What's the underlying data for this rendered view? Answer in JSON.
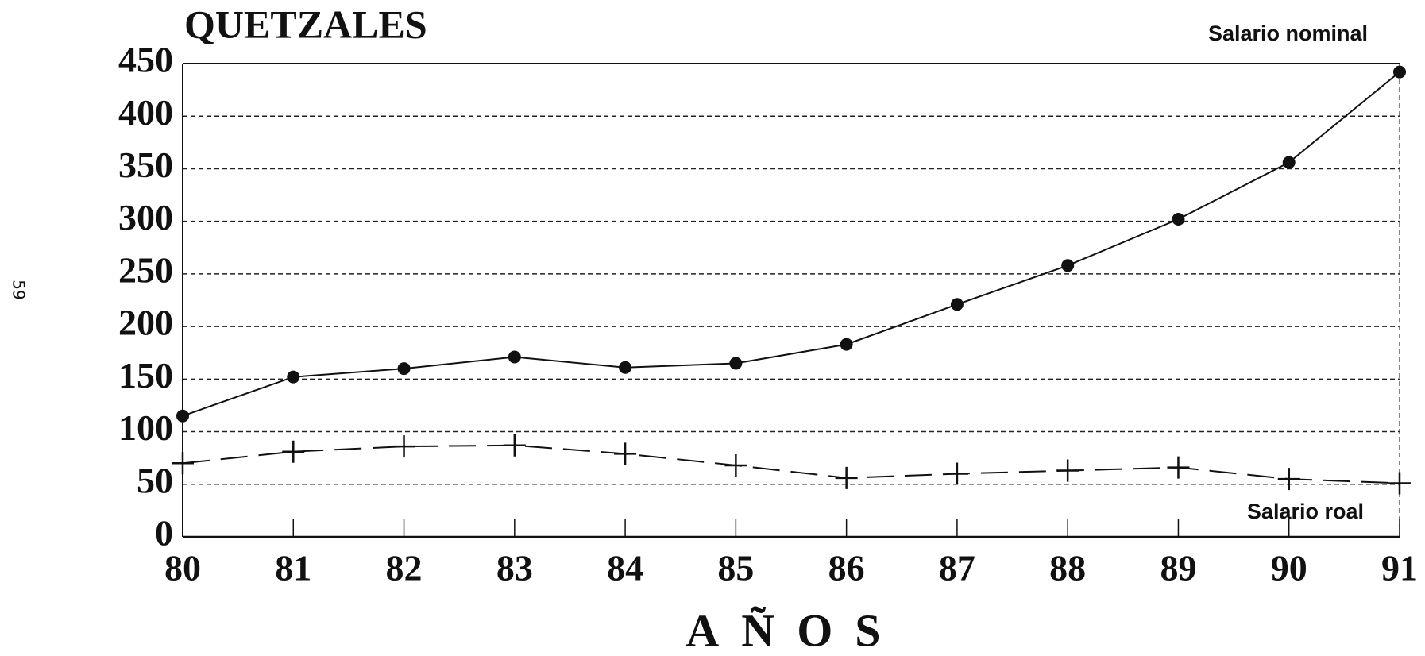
{
  "page_number": "59",
  "chart_data": {
    "type": "line",
    "y_label": "QUETZALES",
    "x_label": "AÑOS",
    "categories": [
      "80",
      "81",
      "82",
      "83",
      "84",
      "85",
      "86",
      "87",
      "88",
      "89",
      "90",
      "91"
    ],
    "series": [
      {
        "name": "Salario nominal",
        "color": "#111111",
        "marker": "circle",
        "line": "solid",
        "values": [
          115,
          152,
          160,
          171,
          161,
          165,
          183,
          221,
          258,
          302,
          356,
          442
        ]
      },
      {
        "name": "Salario roal",
        "color": "#111111",
        "marker": "plus",
        "line": "dashed",
        "values": [
          70,
          81,
          86,
          87,
          79,
          68,
          56,
          60,
          63,
          66,
          55,
          51
        ]
      }
    ],
    "ylim": [
      0,
      450
    ],
    "yticks": [
      0,
      50,
      100,
      150,
      200,
      250,
      300,
      350,
      400,
      450
    ],
    "grid": true
  }
}
